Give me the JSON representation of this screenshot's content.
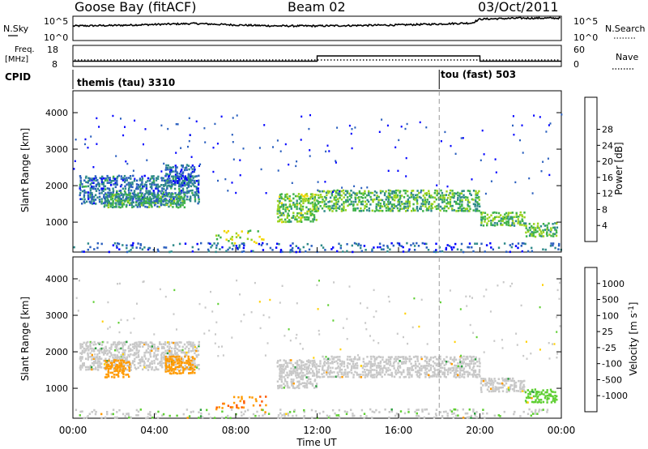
{
  "header": {
    "station": "Goose Bay (fitACF)",
    "beam": "Beam 02",
    "date": "03/Oct/2011"
  },
  "top_panels": {
    "nsky_label": "N.Sky",
    "nsearch_label": "N.Search",
    "nsky_ticks": [
      "10^5",
      "10^0"
    ],
    "nsky_ticks_right": [
      "10^5",
      "10^0"
    ],
    "freq_label_line1": "Freq.",
    "freq_label_line2": "[MHz]",
    "freq_ticks": [
      "18",
      "8"
    ],
    "nave_label": "Nave",
    "nave_ticks": [
      "60",
      "0"
    ],
    "cpid_label": "CPID",
    "cpid_segments": [
      {
        "name": "themis (tau) 3310",
        "start_hour": 0,
        "end_hour": 18
      },
      {
        "name": "tou (fast) 503",
        "start_hour": 18,
        "end_hour": 24
      }
    ]
  },
  "chart_data": [
    {
      "type": "line",
      "name": "noise",
      "x_unit": "hours UT",
      "x": [
        0,
        2,
        4,
        6,
        8,
        10,
        12,
        14,
        16,
        18,
        19.6,
        20,
        22,
        24
      ],
      "series": [
        {
          "name": "N.Sky",
          "values": [
            3.0,
            3.1,
            3.3,
            3.5,
            3.2,
            3.0,
            3.0,
            3.1,
            3.2,
            3.4,
            3.6,
            4.4,
            4.6,
            4.6
          ]
        }
      ],
      "log_scale": true,
      "ylim": [
        0,
        5
      ]
    },
    {
      "type": "line",
      "name": "frequency",
      "x_unit": "hours UT",
      "x": [
        0,
        12,
        12,
        20,
        20,
        24
      ],
      "series": [
        {
          "name": "Freq.",
          "values": [
            10.5,
            10.5,
            13.0,
            13.0,
            10.5,
            10.5
          ]
        }
      ],
      "ylim": [
        8,
        18
      ]
    },
    {
      "type": "heatmap",
      "name": "power",
      "title": "",
      "xlabel": "",
      "ylabel": "Slant Range [km]",
      "xlim": [
        0,
        24
      ],
      "ylim": [
        180,
        4600
      ],
      "yticks": [
        1000,
        2000,
        3000,
        4000
      ],
      "colorbar_label": "Power [dB]",
      "colorbar_ticks": [
        "4",
        "8",
        "12",
        "16",
        "20",
        "24",
        "28"
      ],
      "colorbar_colors": [
        "#0000ff",
        "#2a5fbe",
        "#2f8a8a",
        "#3fb24a",
        "#9ad21e",
        "#f2d600",
        "#ff9400",
        "#ff3c00",
        "#ff0000"
      ],
      "echo_bands": [
        {
          "x0": 0.3,
          "x1": 6.2,
          "r0": 1500,
          "r1": 2300,
          "p": 8
        },
        {
          "x0": 4.5,
          "x1": 6.0,
          "r0": 2000,
          "r1": 2600,
          "p": 7
        },
        {
          "x0": 7.0,
          "x1": 9.5,
          "r0": 400,
          "r1": 800,
          "p": 18
        },
        {
          "x0": 10.0,
          "x1": 12.0,
          "r0": 1000,
          "r1": 1800,
          "p": 16
        },
        {
          "x0": 12.0,
          "x1": 20.0,
          "r0": 1300,
          "r1": 1900,
          "p": 14
        },
        {
          "x0": 20.0,
          "x1": 22.2,
          "r0": 900,
          "r1": 1300,
          "p": 15
        },
        {
          "x0": 22.2,
          "x1": 23.8,
          "r0": 600,
          "r1": 1000,
          "p": 14
        },
        {
          "x0": 0.0,
          "x1": 24.0,
          "r0": 180,
          "r1": 450,
          "p": 6
        },
        {
          "x0": 1.5,
          "x1": 5.5,
          "r0": 1400,
          "r1": 1800,
          "p": 12
        }
      ]
    },
    {
      "type": "heatmap",
      "name": "velocity",
      "title": "",
      "xlabel": "Time UT",
      "ylabel": "Slant Range [km]",
      "xlim": [
        0,
        24
      ],
      "ylim": [
        180,
        4600
      ],
      "yticks": [
        1000,
        2000,
        3000,
        4000
      ],
      "xticks": [
        "00:00",
        "04:00",
        "08:00",
        "12:00",
        "16:00",
        "20:00",
        "00:00"
      ],
      "colorbar_label": "Velocity [m s^-1]",
      "colorbar_ticks": [
        "1000",
        "500",
        "100",
        "25",
        "-25",
        "-100",
        "-500",
        "-1000"
      ],
      "colorbar_colors": [
        "#1a2fcf",
        "#1f6a55",
        "#2c9d3f",
        "#5fcf33",
        "#c8c8c8",
        "#ffd000",
        "#ff9a00",
        "#ff5a00",
        "#ff0000"
      ],
      "echo_bands": [
        {
          "x0": 0.3,
          "x1": 6.2,
          "r0": 1500,
          "r1": 2300,
          "v": 0
        },
        {
          "x0": 1.5,
          "x1": 2.8,
          "r0": 1300,
          "r1": 1800,
          "v": -200
        },
        {
          "x0": 4.5,
          "x1": 6.0,
          "r0": 1400,
          "r1": 1900,
          "v": -300
        },
        {
          "x0": 7.0,
          "x1": 9.5,
          "r0": 400,
          "r1": 800,
          "v": -400
        },
        {
          "x0": 10.0,
          "x1": 12.0,
          "r0": 1000,
          "r1": 1800,
          "v": 0
        },
        {
          "x0": 12.0,
          "x1": 20.0,
          "r0": 1300,
          "r1": 1900,
          "v": 0
        },
        {
          "x0": 20.0,
          "x1": 22.2,
          "r0": 900,
          "r1": 1300,
          "v": 0
        },
        {
          "x0": 22.2,
          "x1": 23.8,
          "r0": 600,
          "r1": 1000,
          "v": 50
        },
        {
          "x0": 0.0,
          "x1": 24.0,
          "r0": 180,
          "r1": 450,
          "v": 20
        }
      ]
    }
  ],
  "reference_line_hour": 18
}
